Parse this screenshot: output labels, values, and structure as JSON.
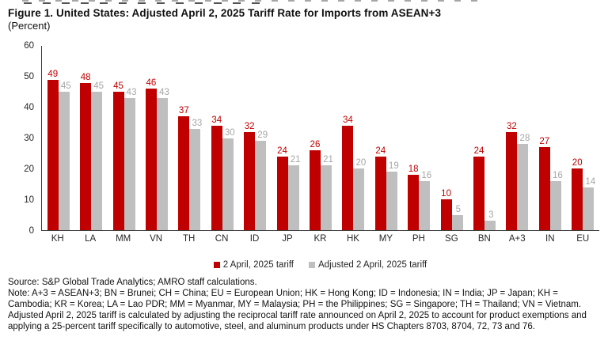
{
  "title": {
    "line1": "Figure 1. United States: Adjusted April 2, 2025 Tariff Rate for Imports from ASEAN+3",
    "line2": "(Percent)"
  },
  "chart_data": {
    "type": "bar",
    "title": "Figure 1. United States: Adjusted April 2, 2025 Tariff Rate for Imports from ASEAN+3",
    "unit_label": "(Percent)",
    "categories": [
      "KH",
      "LA",
      "MM",
      "VN",
      "TH",
      "CN",
      "ID",
      "JP",
      "KR",
      "HK",
      "MY",
      "PH",
      "SG",
      "BN",
      "A+3",
      "IN",
      "EU"
    ],
    "series": [
      {
        "name": "2 April, 2025 tariff",
        "color": "#C00000",
        "label_color": "#C00000",
        "values": [
          49,
          48,
          45,
          46,
          37,
          34,
          32,
          24,
          26,
          34,
          24,
          18,
          10,
          24,
          32,
          27,
          20
        ]
      },
      {
        "name": "Adjusted 2 April, 2025 tariff",
        "color": "#BFBFBF",
        "label_color": "#A6A6A6",
        "values": [
          45,
          45,
          43,
          43,
          33,
          30,
          29,
          21,
          21,
          20,
          19,
          16,
          5,
          3,
          28,
          16,
          14
        ]
      }
    ],
    "ylim": [
      0,
      60
    ],
    "yticks": [
      0,
      10,
      20,
      30,
      40,
      50,
      60
    ],
    "grid": false,
    "legend_position": "bottom-center",
    "axis_color": "#3d3d3d"
  },
  "footer": {
    "source": "Source: S&P Global Trade Analytics; AMRO staff calculations.",
    "note": "Note: A+3 = ASEAN+3; BN = Brunei; CH = China; EU = European Union; HK = Hong Kong; ID = Indonesia; IN = India; JP = Japan; KH = Cambodia; KR = Korea; LA = Lao PDR; MM = Myanmar, MY = Malaysia; PH = the Philippines; SG = Singapore; TH = Thailand; VN = Vietnam. Adjusted April 2, 2025 tariff is calculated by adjusting the reciprocal tariff rate announced on April 2, 2025 to account for product exemptions and applying a 25-percent tariff specifically to automotive, steel, and aluminum products under HS Chapters 8703, 8704, 72, 73 and 76."
  }
}
